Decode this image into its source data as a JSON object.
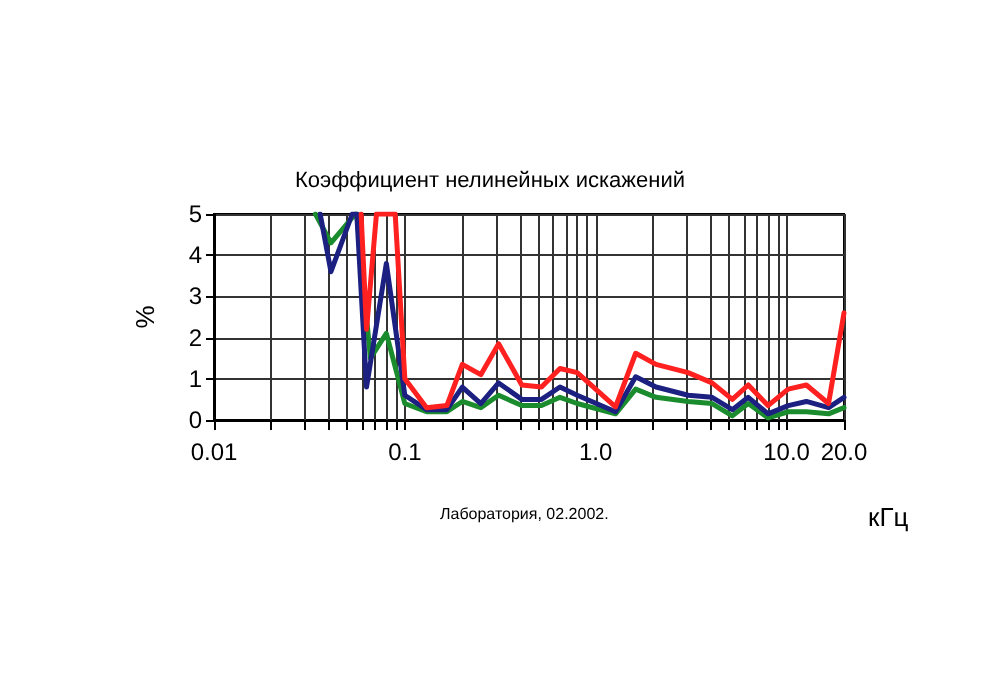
{
  "chart_data": {
    "type": "line",
    "title": "Коэффициент нелинейных искажений",
    "xlabel": "кГц",
    "ylabel": "%",
    "annotations": [
      "Лаборатория, 02.2002."
    ],
    "log": "x",
    "grid": true,
    "marker": "none",
    "line_style": "solid",
    "xlim": [
      0.01,
      20
    ],
    "ylim": [
      0,
      5
    ],
    "xticks": [
      {
        "value": 0.01,
        "label": "0.01"
      },
      {
        "value": 0.02,
        "label": null
      },
      {
        "value": 0.03,
        "label": null
      },
      {
        "value": 0.04,
        "label": null
      },
      {
        "value": 0.05,
        "label": null
      },
      {
        "value": 0.06,
        "label": null
      },
      {
        "value": 0.07,
        "label": null
      },
      {
        "value": 0.08,
        "label": null
      },
      {
        "value": 0.09,
        "label": null
      },
      {
        "value": 0.1,
        "label": "0.1"
      },
      {
        "value": 0.2,
        "label": null
      },
      {
        "value": 0.3,
        "label": null
      },
      {
        "value": 0.4,
        "label": null
      },
      {
        "value": 0.5,
        "label": null
      },
      {
        "value": 0.6,
        "label": null
      },
      {
        "value": 0.7,
        "label": null
      },
      {
        "value": 0.8,
        "label": null
      },
      {
        "value": 0.9,
        "label": null
      },
      {
        "value": 1,
        "label": "1.0"
      },
      {
        "value": 2,
        "label": null
      },
      {
        "value": 3,
        "label": null
      },
      {
        "value": 4,
        "label": null
      },
      {
        "value": 5,
        "label": null
      },
      {
        "value": 6,
        "label": null
      },
      {
        "value": 7,
        "label": null
      },
      {
        "value": 8,
        "label": null
      },
      {
        "value": 9,
        "label": null
      },
      {
        "value": 10,
        "label": "10.0"
      },
      {
        "value": 20,
        "label": "20.0"
      }
    ],
    "yticks": [
      0,
      1,
      2,
      3,
      4,
      5
    ],
    "series": [
      {
        "color": "#1a8c2e",
        "x": [
          0.034,
          0.041,
          0.055,
          0.056,
          0.066,
          0.08,
          0.1,
          0.13,
          0.166,
          0.2,
          0.25,
          0.31,
          0.41,
          0.52,
          0.65,
          0.8,
          1.27,
          1.62,
          2.07,
          3.05,
          4.07,
          5.2,
          6.3,
          8.0,
          10.2,
          12.7,
          16.6,
          20
        ],
        "values": [
          5,
          4.3,
          5,
          5,
          1.5,
          2.1,
          0.4,
          0.2,
          0.2,
          0.45,
          0.3,
          0.6,
          0.35,
          0.35,
          0.55,
          0.4,
          0.15,
          0.75,
          0.55,
          0.45,
          0.4,
          0.1,
          0.4,
          0.05,
          0.2,
          0.2,
          0.15,
          0.3
        ]
      },
      {
        "color": "#1c2080",
        "x": [
          0.036,
          0.041,
          0.053,
          0.056,
          0.063,
          0.08,
          0.1,
          0.13,
          0.166,
          0.2,
          0.25,
          0.31,
          0.41,
          0.52,
          0.65,
          0.8,
          1.27,
          1.62,
          2.07,
          3.05,
          4.07,
          5.2,
          6.3,
          8.0,
          10.2,
          12.7,
          16.6,
          20
        ],
        "values": [
          5,
          3.6,
          5,
          5,
          0.8,
          3.8,
          0.6,
          0.25,
          0.25,
          0.8,
          0.4,
          0.9,
          0.5,
          0.5,
          0.8,
          0.6,
          0.2,
          1.05,
          0.8,
          0.6,
          0.55,
          0.25,
          0.55,
          0.15,
          0.35,
          0.45,
          0.3,
          0.55
        ]
      },
      {
        "color": "#ff2020",
        "x": [
          0.059,
          0.063,
          0.071,
          0.089,
          0.1,
          0.13,
          0.166,
          0.2,
          0.25,
          0.31,
          0.41,
          0.52,
          0.65,
          0.8,
          1.27,
          1.62,
          2.07,
          3.05,
          4.07,
          5.2,
          6.3,
          8.0,
          10.2,
          12.7,
          16.6,
          20
        ],
        "values": [
          5,
          2.2,
          5,
          5,
          1.0,
          0.3,
          0.35,
          1.35,
          1.1,
          1.85,
          0.85,
          0.8,
          1.25,
          1.15,
          0.32,
          1.62,
          1.35,
          1.15,
          0.9,
          0.5,
          0.85,
          0.35,
          0.75,
          0.85,
          0.4,
          2.6
        ]
      }
    ]
  }
}
